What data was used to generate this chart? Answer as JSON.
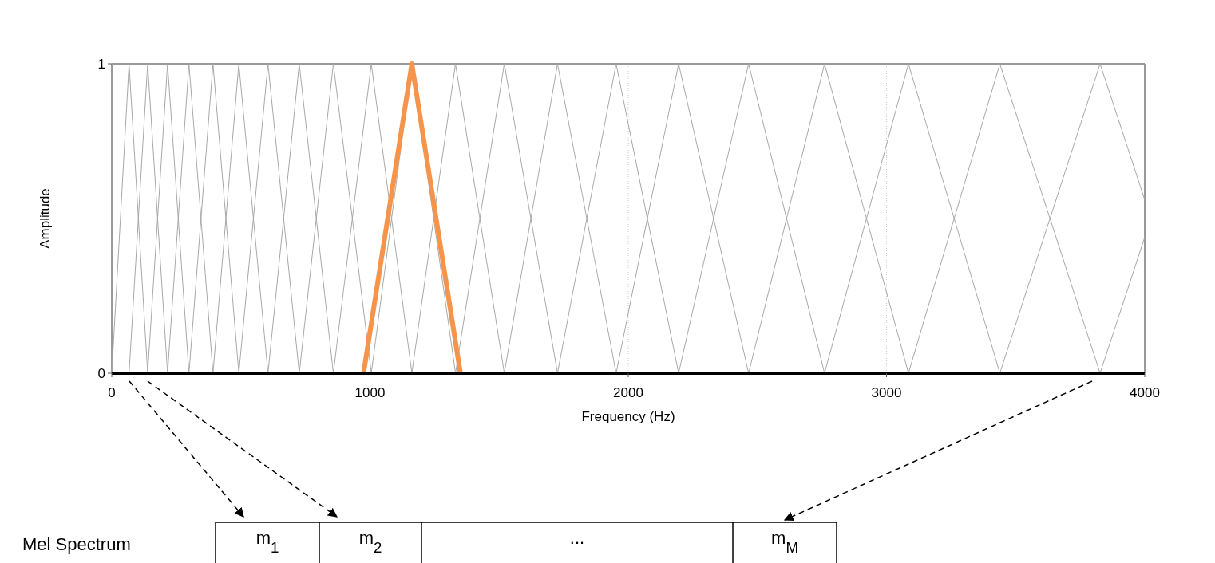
{
  "chart_data": {
    "type": "line",
    "xlabel": "Frequency (Hz)",
    "ylabel": "Amplitude",
    "xlim": [
      0,
      4000
    ],
    "ylim": [
      0,
      1
    ],
    "xticks": [
      0,
      1000,
      2000,
      3000,
      4000
    ],
    "yticks": [
      0,
      1
    ],
    "grid": "x",
    "marker": "none",
    "line_style": "solid",
    "series": [
      {
        "color": "#a8a8a8",
        "x": [
          0,
          67,
          139
        ],
        "values": [
          0,
          1,
          0
        ]
      },
      {
        "color": "#a8a8a8",
        "x": [
          67,
          139,
          216
        ],
        "values": [
          0,
          1,
          0
        ]
      },
      {
        "color": "#a8a8a8",
        "x": [
          139,
          216,
          299
        ],
        "values": [
          0,
          1,
          0
        ]
      },
      {
        "color": "#a8a8a8",
        "x": [
          216,
          299,
          392
        ],
        "values": [
          0,
          1,
          0
        ]
      },
      {
        "color": "#a8a8a8",
        "x": [
          299,
          392,
          492
        ],
        "values": [
          0,
          1,
          0
        ]
      },
      {
        "color": "#a8a8a8",
        "x": [
          392,
          492,
          605
        ],
        "values": [
          0,
          1,
          0
        ]
      },
      {
        "color": "#a8a8a8",
        "x": [
          492,
          605,
          726
        ],
        "values": [
          0,
          1,
          0
        ]
      },
      {
        "color": "#a8a8a8",
        "x": [
          605,
          726,
          858
        ],
        "values": [
          0,
          1,
          0
        ]
      },
      {
        "color": "#a8a8a8",
        "x": [
          726,
          858,
          1005
        ],
        "values": [
          0,
          1,
          0
        ]
      },
      {
        "color": "#a8a8a8",
        "x": [
          858,
          1005,
          1162
        ],
        "values": [
          0,
          1,
          0
        ]
      },
      {
        "color": "#a8a8a8",
        "x": [
          1005,
          1162,
          1331
        ],
        "values": [
          0,
          1,
          0
        ]
      },
      {
        "color": "#a8a8a8",
        "x": [
          1162,
          1331,
          1520
        ],
        "values": [
          0,
          1,
          0
        ]
      },
      {
        "color": "#a8a8a8",
        "x": [
          1331,
          1520,
          1726
        ],
        "values": [
          0,
          1,
          0
        ]
      },
      {
        "color": "#a8a8a8",
        "x": [
          1520,
          1726,
          1953
        ],
        "values": [
          0,
          1,
          0
        ]
      },
      {
        "color": "#a8a8a8",
        "x": [
          1726,
          1953,
          2195
        ],
        "values": [
          0,
          1,
          0
        ]
      },
      {
        "color": "#a8a8a8",
        "x": [
          1953,
          2195,
          2466
        ],
        "values": [
          0,
          1,
          0
        ]
      },
      {
        "color": "#a8a8a8",
        "x": [
          2195,
          2466,
          2760
        ],
        "values": [
          0,
          1,
          0
        ]
      },
      {
        "color": "#a8a8a8",
        "x": [
          2466,
          2760,
          3085
        ],
        "values": [
          0,
          1,
          0
        ]
      },
      {
        "color": "#a8a8a8",
        "x": [
          2760,
          3085,
          3439
        ],
        "values": [
          0,
          1,
          0
        ]
      },
      {
        "color": "#a8a8a8",
        "x": [
          3085,
          3439,
          3827
        ],
        "values": [
          0,
          1,
          0
        ]
      },
      {
        "color": "#a8a8a8",
        "x": [
          3439,
          3827,
          4000
        ],
        "values": [
          0,
          1,
          0.56
        ]
      },
      {
        "color": "#a8a8a8",
        "x": [
          3827,
          4000
        ],
        "values": [
          0,
          0.44
        ]
      },
      {
        "color": "#f5944a",
        "x": [
          975,
          1162,
          1350
        ],
        "values": [
          0,
          1,
          0
        ]
      }
    ],
    "annotations": [
      "Mel Spectrum",
      "m$_{1}$",
      "m$_{2}$",
      "...",
      "m$_{M}$"
    ]
  }
}
